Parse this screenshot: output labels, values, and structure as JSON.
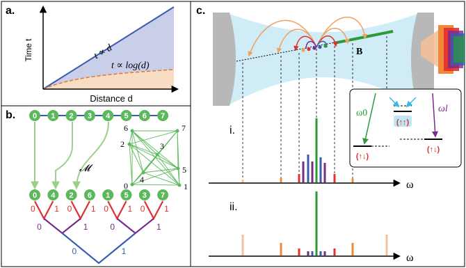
{
  "panel_a": {
    "label": "a.",
    "y_axis_label": "Time t",
    "x_axis_label": "Distance d",
    "linear_label": "t ∝ d",
    "log_label": "t ∝ log(d)",
    "colors": {
      "linear": "#3a5bb0",
      "linear_fill": "#c9cfe9",
      "log": "#e07a2a",
      "log_fill": "#f8dcc4"
    }
  },
  "panel_b": {
    "label": "b.",
    "top_nodes": [
      "0",
      "1",
      "2",
      "3",
      "4",
      "5",
      "6",
      "7"
    ],
    "bottom_nodes": [
      "0",
      "4",
      "2",
      "6",
      "1",
      "5",
      "3",
      "7"
    ],
    "mapping_label": "𝓜",
    "graph_nodes": [
      "0",
      "1",
      "2",
      "3",
      "4",
      "5",
      "6",
      "7"
    ],
    "tree_level1": [
      "0",
      "1",
      "0",
      "1",
      "0",
      "1",
      "0",
      "1"
    ],
    "tree_level2": [
      "0",
      "1",
      "0",
      "1"
    ],
    "tree_level3": [
      "0",
      "1"
    ],
    "colors": {
      "node": "#5cb85c",
      "level1": "#e03030",
      "level2": "#7a2a8a",
      "level3": "#3a5bb0"
    }
  },
  "panel_c": {
    "label": "c.",
    "field_label": "B",
    "spectrum_i_label": "i.",
    "spectrum_ii_label": "ii.",
    "omega_axis_label": "ω",
    "inset": {
      "omega0_label": "ω0",
      "omegal_label": "ωl",
      "state_top": "(↑↑)",
      "state_bottom_left": "(↑↓)",
      "state_bottom_right": "(↑↓)"
    },
    "colors": {
      "carrier": "#2a9a3a",
      "sideband_blue": "#3a5bb0",
      "sideband_purple": "#7a2a8a",
      "sideband_red": "#e03030",
      "sideband_orange": "#f0883a",
      "sideband_light": "#f4c09a",
      "cavity": "#bfe6f4"
    }
  }
}
